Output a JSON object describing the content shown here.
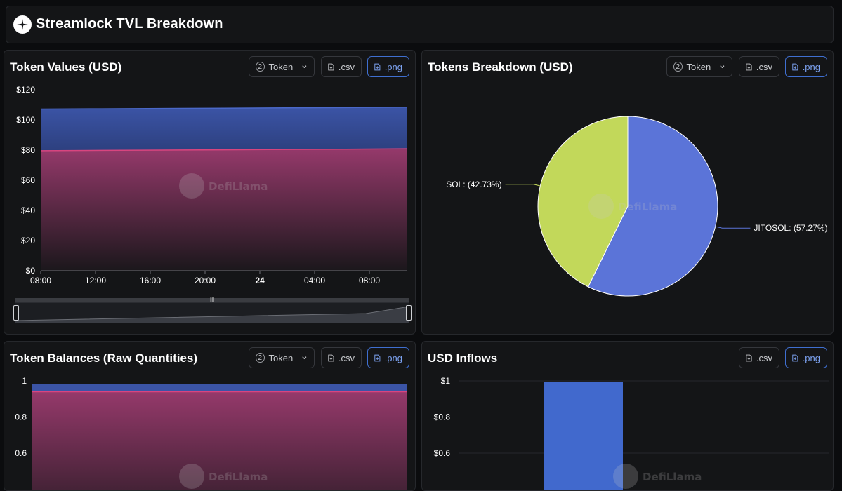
{
  "header": {
    "title": "Streamlock TVL Breakdown"
  },
  "controls": {
    "token_label": "Token",
    "token_count": "2",
    "csv_label": ".csv",
    "png_label": ".png"
  },
  "watermark": "DefiLlama",
  "panels": {
    "token_values": {
      "title": "Token Values (USD)"
    },
    "tokens_breakdown": {
      "title": "Tokens Breakdown (USD)"
    },
    "token_balances": {
      "title": "Token Balances (Raw Quantities)"
    },
    "usd_inflows": {
      "title": "USD Inflows"
    }
  },
  "colors": {
    "blue": "#3b54a6",
    "pink": "#9c3b6f",
    "lime": "#c2d85a",
    "pie_blue": "#5b74d8",
    "bar_blue": "#4169cd"
  },
  "chart_data": [
    {
      "type": "area",
      "stacked": true,
      "x_ticks": [
        "08:00",
        "12:00",
        "16:00",
        "20:00",
        "24",
        "04:00",
        "08:00"
      ],
      "y_ticks": [
        "$0",
        "$20",
        "$40",
        "$60",
        "$80",
        "$100",
        "$120"
      ],
      "ylim": [
        0,
        120
      ],
      "series": [
        {
          "values": [
            79.6,
            79.8,
            80.0,
            80.2,
            80.4,
            80.6,
            80.9
          ]
        },
        {
          "values": [
            27.6,
            27.6,
            27.6,
            27.6,
            27.6,
            27.6,
            27.6
          ]
        }
      ]
    },
    {
      "type": "pie",
      "slices": [
        {
          "label": "JITOSOL: (57.27%)",
          "value": 57.27
        },
        {
          "label": "SOL: (42.73%)",
          "value": 42.73
        }
      ]
    },
    {
      "type": "area",
      "stacked": true,
      "y_ticks": [
        "0.6",
        "0.8",
        "1"
      ],
      "series": [
        {
          "values": [
            0.94,
            0.94
          ]
        },
        {
          "values": [
            0.06,
            0.06
          ]
        }
      ]
    },
    {
      "type": "bar",
      "y_ticks": [
        "$0.6",
        "$0.8",
        "$1"
      ],
      "values": [
        1
      ]
    }
  ]
}
